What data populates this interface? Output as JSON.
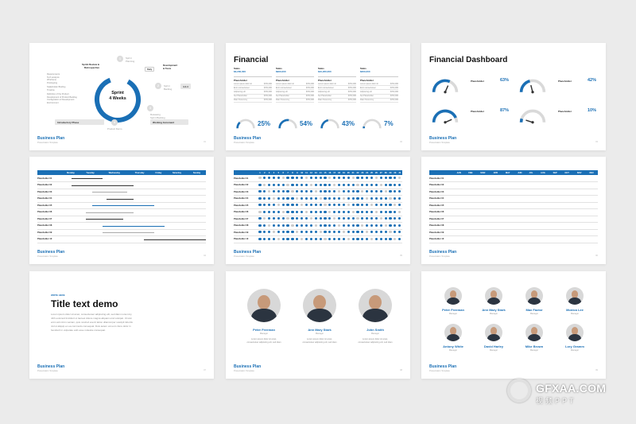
{
  "brand": "Business Plan",
  "brand_sub": "Presentation Template",
  "slide1": {
    "center": "Sprint\n4 Weeks",
    "labels": {
      "sprint_review": "Sprint Review &\nRetrospective",
      "sprint_plan": "Sprint\nPlanning",
      "development": "Development\n& Tests",
      "daily": "Daily",
      "sprint_backlog": "Sprint\nBacklog",
      "product_demo": "Product Demo",
      "releasing": "Releasing\nSprint Backlog",
      "work_inc": "Working Increment",
      "intro": "Introductory Phase"
    },
    "dots": [
      "1",
      "2",
      "3",
      "4"
    ],
    "chip444": "4.4.4",
    "side_notes": [
      "Requirements",
      "Tech analysis",
      "Wireframe",
      "Prototyping",
      "Stakeholder Briefing",
      "Timeline",
      "Definition of the Product",
      "Development of Product Backlog",
      "Configuration of Development",
      "Environment"
    ],
    "page": "01"
  },
  "slide2": {
    "title": "Financial",
    "columns": [
      {
        "label": "Sales",
        "amount": "$3,200,000",
        "ph": "Placeholder"
      },
      {
        "label": "Sales",
        "amount": "$900,000",
        "ph": "Placeholder"
      },
      {
        "label": "Sales",
        "amount": "$10,200,000",
        "ph": "Placeholder"
      },
      {
        "label": "Sales",
        "amount": "$200,000",
        "ph": "Placeholder"
      }
    ],
    "lines": [
      [
        "Lorem ipsum dolor sit",
        "$700,000"
      ],
      [
        "Enim consectetuer",
        "$700,000"
      ],
      [
        "Adipiscing elit",
        "$700,000"
      ],
      [
        "Set Placeholder",
        "$700,000"
      ],
      [
        "Diam Nonummy",
        "$700,000"
      ]
    ],
    "percents": [
      "25%",
      "54%",
      "43%",
      "7%"
    ],
    "page": "02"
  },
  "slide3": {
    "title": "Financial Dashboard",
    "gauges": [
      {
        "ph": "Placeholder",
        "pct": "63%"
      },
      {
        "ph": "Placeholder",
        "pct": "42%"
      },
      {
        "ph": "Placeholder",
        "pct": "87%"
      },
      {
        "ph": "Placeholder",
        "pct": "10%"
      }
    ],
    "page": "03"
  },
  "slide4": {
    "days": [
      "Monday",
      "Tuesday",
      "Wednesday",
      "Thursday",
      "Friday",
      "Saturday",
      "Sunday"
    ],
    "rows": [
      "Placeholder 01",
      "Placeholder 02",
      "Placeholder 03",
      "Placeholder 04",
      "Placeholder 05",
      "Placeholder 06",
      "Placeholder 07",
      "Placeholder 08",
      "Placeholder 09",
      "Placeholder 10"
    ],
    "page": "04"
  },
  "slide5": {
    "rows": [
      "Placeholder 01",
      "Placeholder 02",
      "Placeholder 03",
      "Placeholder 04",
      "Placeholder 05",
      "Placeholder 06",
      "Placeholder 07",
      "Placeholder 08",
      "Placeholder 09",
      "Placeholder 10"
    ],
    "page": "05"
  },
  "slide6": {
    "months": [
      "JAN",
      "FEB",
      "MAR",
      "APR",
      "MAY",
      "JUN",
      "JUL",
      "AUG",
      "SEP",
      "OCT",
      "NOV",
      "DEC"
    ],
    "rows": [
      "Placeholder 01",
      "Placeholder 02",
      "Placeholder 03",
      "Placeholder 04",
      "Placeholder 05",
      "Placeholder 06",
      "Placeholder 07",
      "Placeholder 08",
      "Placeholder 09",
      "Placeholder 10"
    ],
    "page": "06"
  },
  "slide7": {
    "kicker": "WRITE HERE",
    "title": "Title text demo",
    "body": "Lorem ipsum dolor sit amet, consectetuer adipiscing elit, sed diam nonummy nibh euismod tincidunt ut laoreet dolore magna aliquam erat volutpat. Ut wisi enim ad minim veniam, quis nostrud exerci tation ullamcorper suscipit lobortis nisl ut aliquip ex ea commodo consequat. Duis autem vel eum iriure dolor in hendrerit in vulputate velit esse molestie consequat.",
    "page": "07"
  },
  "slide8": {
    "members": [
      {
        "name": "Peter Freeman",
        "role": "Manager"
      },
      {
        "name": "Ann Mary Stark",
        "role": "Manager"
      },
      {
        "name": "John Smith",
        "role": "Manager"
      }
    ],
    "blurb": "Lorem ipsum dolor sit amet, consectetuer adipiscing elit, sed diam",
    "page": "08"
  },
  "slide9": {
    "members": [
      {
        "name": "Peter Freeman",
        "role": "Manager"
      },
      {
        "name": "Ann Mary Stark",
        "role": "Manager"
      },
      {
        "name": "Max Factor",
        "role": "Manager"
      },
      {
        "name": "Monica Lee",
        "role": "Manager"
      },
      {
        "name": "Antony White",
        "role": "Manager"
      },
      {
        "name": "David Harley",
        "role": "Manager"
      },
      {
        "name": "Mike Brown",
        "role": "Manager"
      },
      {
        "name": "Lory Gramm",
        "role": "Manager"
      }
    ],
    "page": "09"
  },
  "watermark": {
    "line1": "GFXAA.COM",
    "line2": "视频PPT"
  },
  "colors": {
    "accent": "#1a6fb5",
    "grey": "#c9c9c9",
    "background": "#ebebeb"
  }
}
